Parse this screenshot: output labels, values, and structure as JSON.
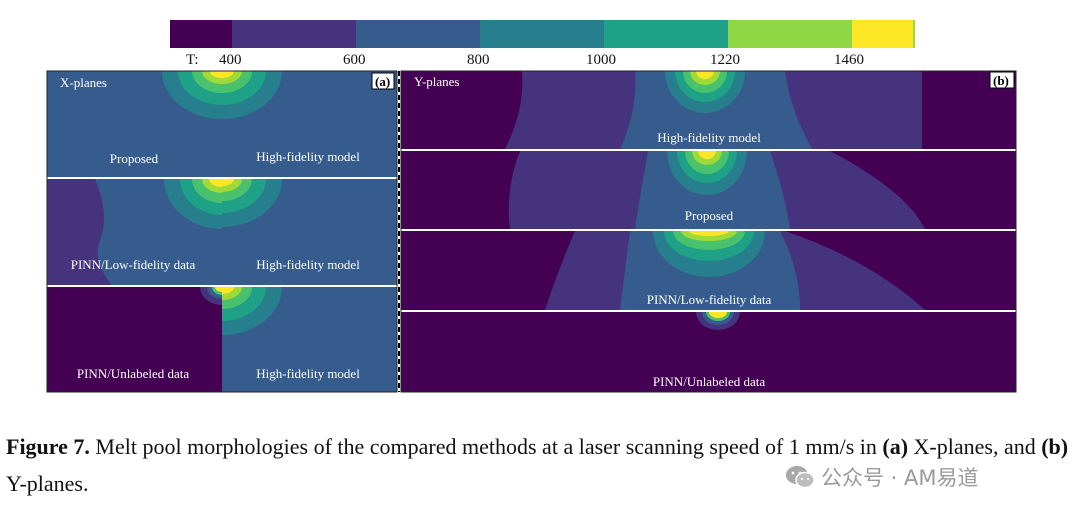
{
  "colorbar": {
    "prefix": "T:",
    "ticks": [
      "400",
      "600",
      "800",
      "1000",
      "1220",
      "1460"
    ],
    "colors": [
      "#440154",
      "#46337e",
      "#365c8d",
      "#277f8e",
      "#1fa187",
      "#4ac16d",
      "#a0da39",
      "#fde725"
    ]
  },
  "panel_a": {
    "title": "X-planes",
    "tag": "(a)",
    "rows": [
      {
        "left": "Proposed",
        "right": "High-fidelity model"
      },
      {
        "left": "PINN/Low-fidelity data",
        "right": "High-fidelity model"
      },
      {
        "left": "PINN/Unlabeled data",
        "right": "High-fidelity model"
      }
    ]
  },
  "panel_b": {
    "title": "Y-planes",
    "tag": "(b)",
    "rows": [
      "High-fidelity model",
      "Proposed",
      "PINN/Low-fidelity data",
      "PINN/Unlabeled data"
    ]
  },
  "caption": {
    "label": "Figure 7.",
    "text_1": " Melt pool morphologies of the compared methods at a laser scanning speed of 1 mm/s in ",
    "a": "(a)",
    "text_2": " X-planes, and ",
    "b": "(b)",
    "text_3": " Y-planes."
  },
  "watermark": {
    "text": "公众号 · AM易道",
    "icon": "wechat-icon"
  }
}
